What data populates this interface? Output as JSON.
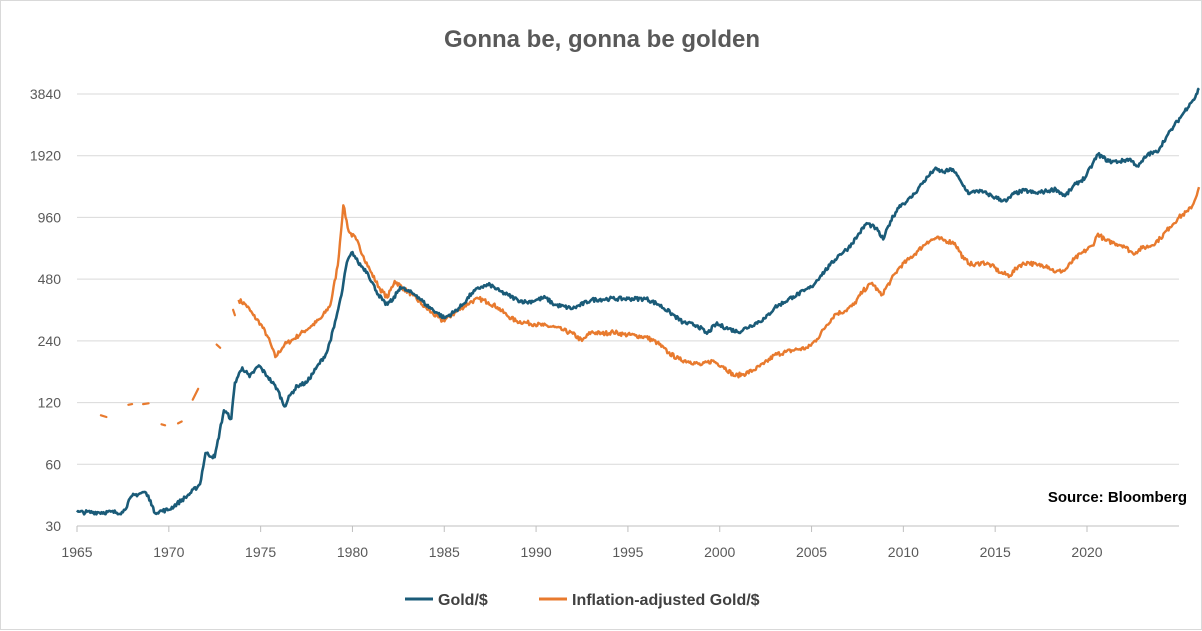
{
  "chart_data": {
    "type": "line",
    "title": "Gonna be, gonna be golden",
    "xlabel": "",
    "ylabel": "",
    "y_scale": "log2",
    "ylim": [
      30,
      4200
    ],
    "xlim": [
      1965,
      2025
    ],
    "y_ticks": [
      30,
      60,
      120,
      240,
      480,
      960,
      1920,
      3840
    ],
    "x_ticks": [
      1965,
      1970,
      1975,
      1980,
      1985,
      1990,
      1995,
      2000,
      2005,
      2010,
      2015,
      2020
    ],
    "grid": "horizontal",
    "legend_position": "bottom",
    "annotation": "Source: Bloomberg",
    "series": [
      {
        "name": "Gold/$",
        "color": "#1a5b78",
        "points": [
          [
            1965,
            35
          ],
          [
            1967.5,
            35
          ],
          [
            1968,
            42
          ],
          [
            1968.7,
            44
          ],
          [
            1969,
            40
          ],
          [
            1969.2,
            35
          ],
          [
            1970,
            36
          ],
          [
            1971,
            42
          ],
          [
            1971.7,
            48
          ],
          [
            1972,
            68
          ],
          [
            1972.5,
            65
          ],
          [
            1973,
            110
          ],
          [
            1973.4,
            100
          ],
          [
            1973.6,
            150
          ],
          [
            1974,
            178
          ],
          [
            1974.4,
            160
          ],
          [
            1974.9,
            182
          ],
          [
            1975.4,
            160
          ],
          [
            1975.9,
            140
          ],
          [
            1976.3,
            115
          ],
          [
            1976.6,
            130
          ],
          [
            1977,
            145
          ],
          [
            1977.5,
            150
          ],
          [
            1978,
            175
          ],
          [
            1978.6,
            210
          ],
          [
            1979,
            280
          ],
          [
            1979.4,
            400
          ],
          [
            1979.7,
            580
          ],
          [
            1980,
            650
          ],
          [
            1980.3,
            580
          ],
          [
            1980.8,
            520
          ],
          [
            1981.3,
            420
          ],
          [
            1981.8,
            360
          ],
          [
            1982.2,
            380
          ],
          [
            1982.6,
            440
          ],
          [
            1983,
            420
          ],
          [
            1983.5,
            400
          ],
          [
            1984,
            360
          ],
          [
            1984.6,
            330
          ],
          [
            1985,
            310
          ],
          [
            1985.5,
            330
          ],
          [
            1986,
            360
          ],
          [
            1986.5,
            410
          ],
          [
            1987,
            440
          ],
          [
            1987.5,
            450
          ],
          [
            1988,
            420
          ],
          [
            1988.5,
            400
          ],
          [
            1989,
            380
          ],
          [
            1989.5,
            370
          ],
          [
            1990,
            380
          ],
          [
            1990.5,
            390
          ],
          [
            1991,
            360
          ],
          [
            1992,
            345
          ],
          [
            1993,
            380
          ],
          [
            1994,
            385
          ],
          [
            1995,
            385
          ],
          [
            1996,
            385
          ],
          [
            1996.7,
            360
          ],
          [
            1997.3,
            330
          ],
          [
            1998,
            295
          ],
          [
            1998.8,
            285
          ],
          [
            1999.3,
            260
          ],
          [
            1999.8,
            290
          ],
          [
            2000.5,
            275
          ],
          [
            2001,
            265
          ],
          [
            2001.7,
            285
          ],
          [
            2002.5,
            310
          ],
          [
            2003,
            350
          ],
          [
            2003.5,
            370
          ],
          [
            2004,
            395
          ],
          [
            2004.6,
            420
          ],
          [
            2005,
            440
          ],
          [
            2005.5,
            500
          ],
          [
            2006,
            560
          ],
          [
            2006.5,
            630
          ],
          [
            2007,
            680
          ],
          [
            2007.5,
            780
          ],
          [
            2008,
            900
          ],
          [
            2008.5,
            850
          ],
          [
            2008.9,
            750
          ],
          [
            2009.3,
            920
          ],
          [
            2009.8,
            1100
          ],
          [
            2010.2,
            1150
          ],
          [
            2010.6,
            1250
          ],
          [
            2011,
            1400
          ],
          [
            2011.7,
            1650
          ],
          [
            2012.2,
            1600
          ],
          [
            2012.7,
            1650
          ],
          [
            2013.2,
            1400
          ],
          [
            2013.6,
            1250
          ],
          [
            2014,
            1300
          ],
          [
            2014.6,
            1250
          ],
          [
            2015,
            1200
          ],
          [
            2015.6,
            1150
          ],
          [
            2016,
            1250
          ],
          [
            2016.6,
            1300
          ],
          [
            2017.2,
            1260
          ],
          [
            2017.8,
            1290
          ],
          [
            2018.3,
            1320
          ],
          [
            2018.8,
            1220
          ],
          [
            2019.4,
            1400
          ],
          [
            2019.9,
            1500
          ],
          [
            2020.3,
            1750
          ],
          [
            2020.6,
            1950
          ],
          [
            2021.2,
            1800
          ],
          [
            2021.8,
            1800
          ],
          [
            2022.3,
            1850
          ],
          [
            2022.8,
            1700
          ],
          [
            2023.3,
            1950
          ],
          [
            2023.8,
            2000
          ],
          [
            2024.3,
            2350
          ],
          [
            2024.7,
            2650
          ],
          [
            2025.2,
            3050
          ],
          [
            2025.6,
            3450
          ],
          [
            2025.9,
            3700
          ],
          [
            2026.1,
            4100
          ]
        ]
      },
      {
        "name": "Inflation-adjusted Gold/$",
        "color": "#e87a2e",
        "points": [
          [
            1973.8,
            380
          ],
          [
            1974.2,
            360
          ],
          [
            1974.6,
            320
          ],
          [
            1975,
            290
          ],
          [
            1975.4,
            250
          ],
          [
            1975.8,
            200
          ],
          [
            1976.3,
            230
          ],
          [
            1976.8,
            245
          ],
          [
            1977.3,
            265
          ],
          [
            1977.8,
            285
          ],
          [
            1978.3,
            310
          ],
          [
            1978.8,
            360
          ],
          [
            1979.2,
            560
          ],
          [
            1979.5,
            1100
          ],
          [
            1979.8,
            820
          ],
          [
            1980.2,
            750
          ],
          [
            1980.6,
            620
          ],
          [
            1981,
            520
          ],
          [
            1981.5,
            430
          ],
          [
            1981.9,
            390
          ],
          [
            1982.3,
            470
          ],
          [
            1982.8,
            430
          ],
          [
            1983.3,
            400
          ],
          [
            1983.8,
            360
          ],
          [
            1984.3,
            330
          ],
          [
            1984.9,
            300
          ],
          [
            1985.4,
            320
          ],
          [
            1985.9,
            345
          ],
          [
            1986.4,
            370
          ],
          [
            1986.9,
            385
          ],
          [
            1987.4,
            370
          ],
          [
            1987.9,
            350
          ],
          [
            1988.4,
            320
          ],
          [
            1988.9,
            300
          ],
          [
            1989.4,
            295
          ],
          [
            1989.9,
            290
          ],
          [
            1990.4,
            285
          ],
          [
            1991,
            280
          ],
          [
            1991.5,
            270
          ],
          [
            1992,
            260
          ],
          [
            1992.5,
            240
          ],
          [
            1993,
            265
          ],
          [
            1993.6,
            260
          ],
          [
            1994.2,
            265
          ],
          [
            1994.8,
            258
          ],
          [
            1995.4,
            255
          ],
          [
            1996,
            250
          ],
          [
            1996.6,
            235
          ],
          [
            1997.2,
            210
          ],
          [
            1997.8,
            195
          ],
          [
            1998.4,
            190
          ],
          [
            1999,
            183
          ],
          [
            1999.6,
            192
          ],
          [
            2000.2,
            180
          ],
          [
            2000.8,
            162
          ],
          [
            2001.3,
            165
          ],
          [
            2001.8,
            172
          ],
          [
            2002.4,
            185
          ],
          [
            2003,
            205
          ],
          [
            2003.6,
            212
          ],
          [
            2004.2,
            218
          ],
          [
            2004.8,
            222
          ],
          [
            2005.3,
            245
          ],
          [
            2005.8,
            285
          ],
          [
            2006.3,
            325
          ],
          [
            2006.8,
            335
          ],
          [
            2007.3,
            360
          ],
          [
            2007.8,
            420
          ],
          [
            2008.3,
            460
          ],
          [
            2008.8,
            400
          ],
          [
            2009.3,
            470
          ],
          [
            2009.8,
            550
          ],
          [
            2010.3,
            600
          ],
          [
            2010.8,
            660
          ],
          [
            2011.3,
            730
          ],
          [
            2011.8,
            760
          ],
          [
            2012.3,
            740
          ],
          [
            2012.8,
            720
          ],
          [
            2013.3,
            600
          ],
          [
            2013.8,
            560
          ],
          [
            2014.3,
            580
          ],
          [
            2014.8,
            560
          ],
          [
            2015.3,
            515
          ],
          [
            2015.8,
            500
          ],
          [
            2016.3,
            560
          ],
          [
            2016.8,
            580
          ],
          [
            2017.3,
            560
          ],
          [
            2017.8,
            560
          ],
          [
            2018.3,
            520
          ],
          [
            2018.8,
            530
          ],
          [
            2019.3,
            600
          ],
          [
            2019.8,
            650
          ],
          [
            2020.3,
            700
          ],
          [
            2020.6,
            800
          ],
          [
            2021,
            740
          ],
          [
            2021.5,
            720
          ],
          [
            2022,
            700
          ],
          [
            2022.5,
            640
          ],
          [
            2023,
            680
          ],
          [
            2023.5,
            700
          ],
          [
            2024,
            760
          ],
          [
            2024.5,
            860
          ],
          [
            2025,
            960
          ],
          [
            2025.5,
            1030
          ],
          [
            2025.8,
            1120
          ],
          [
            2026.1,
            1350
          ]
        ]
      }
    ],
    "early_fragments": [
      [
        [
          1966.3,
          104
        ],
        [
          1966.6,
          102
        ]
      ],
      [
        [
          1967.8,
          117
        ],
        [
          1968,
          118
        ]
      ],
      [
        [
          1968.6,
          118
        ],
        [
          1968.9,
          119
        ]
      ],
      [
        [
          1969.6,
          94
        ],
        [
          1969.8,
          93
        ]
      ],
      [
        [
          1970.5,
          95
        ],
        [
          1970.7,
          97
        ]
      ],
      [
        [
          1971.3,
          124
        ],
        [
          1971.6,
          140
        ]
      ],
      [
        [
          1972.6,
          230
        ],
        [
          1972.8,
          222
        ]
      ],
      [
        [
          1973.5,
          340
        ],
        [
          1973.6,
          320
        ]
      ]
    ]
  },
  "legend": {
    "items": [
      {
        "label": "Gold/$",
        "color": "#1a5b78"
      },
      {
        "label": "Inflation-adjusted Gold/$",
        "color": "#e87a2e"
      }
    ]
  }
}
